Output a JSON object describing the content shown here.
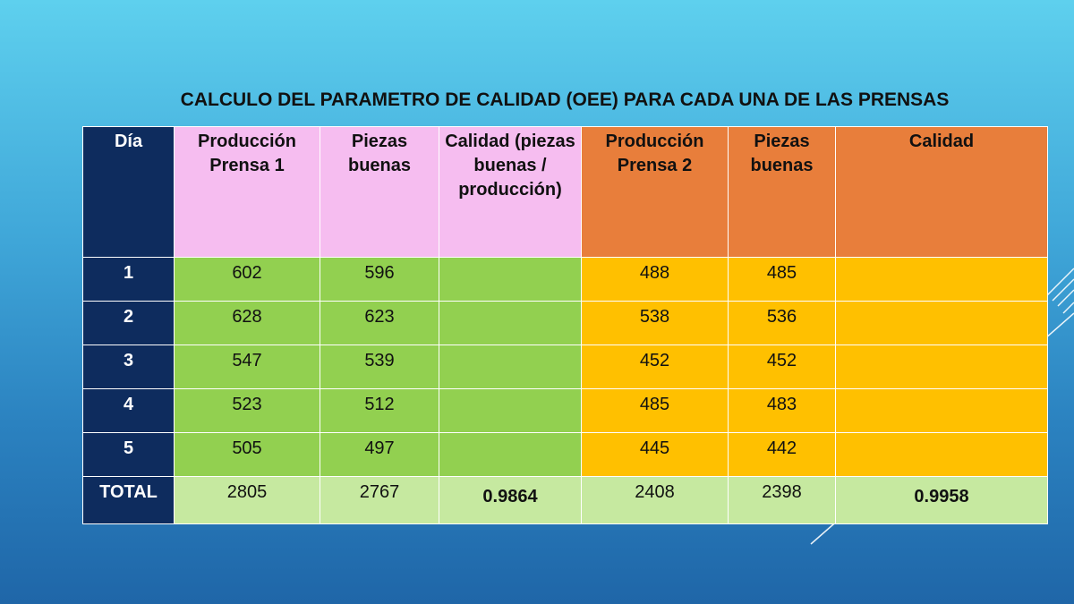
{
  "title": "CALCULO DEL PARAMETRO DE CALIDAD (OEE) PARA CADA UNA DE LAS PRENSAS",
  "headers": {
    "dia": "Día",
    "prod1": "Producción Prensa 1",
    "buenas1": "Piezas buenas",
    "calidad1": "Calidad (piezas buenas / producción)",
    "prod2": "Producción Prensa 2",
    "buenas2": "Piezas buenas",
    "calidad2": "Calidad"
  },
  "rows": [
    {
      "dia": "1",
      "prod1": "602",
      "buenas1": "596",
      "calidad1": "",
      "prod2": "488",
      "buenas2": "485",
      "calidad2": ""
    },
    {
      "dia": "2",
      "prod1": "628",
      "buenas1": "623",
      "calidad1": "",
      "prod2": "538",
      "buenas2": "536",
      "calidad2": ""
    },
    {
      "dia": "3",
      "prod1": "547",
      "buenas1": "539",
      "calidad1": "",
      "prod2": "452",
      "buenas2": "452",
      "calidad2": ""
    },
    {
      "dia": "4",
      "prod1": "523",
      "buenas1": "512",
      "calidad1": "",
      "prod2": "485",
      "buenas2": "483",
      "calidad2": ""
    },
    {
      "dia": "5",
      "prod1": "505",
      "buenas1": "497",
      "calidad1": "",
      "prod2": "445",
      "buenas2": "442",
      "calidad2": ""
    }
  ],
  "total": {
    "label": "TOTAL",
    "prod1": "2805",
    "buenas1": "2767",
    "calidad1": "0.9864",
    "prod2": "2408",
    "buenas2": "2398",
    "calidad2": "0.9958"
  },
  "colors": {
    "dia_column": "#0e2c5e",
    "prensa1_header": "#f6bdf0",
    "prensa2_header": "#e87e3b",
    "prensa1_body": "#92d050",
    "prensa2_body": "#ffc000",
    "total_row": "#c6e9a0"
  }
}
